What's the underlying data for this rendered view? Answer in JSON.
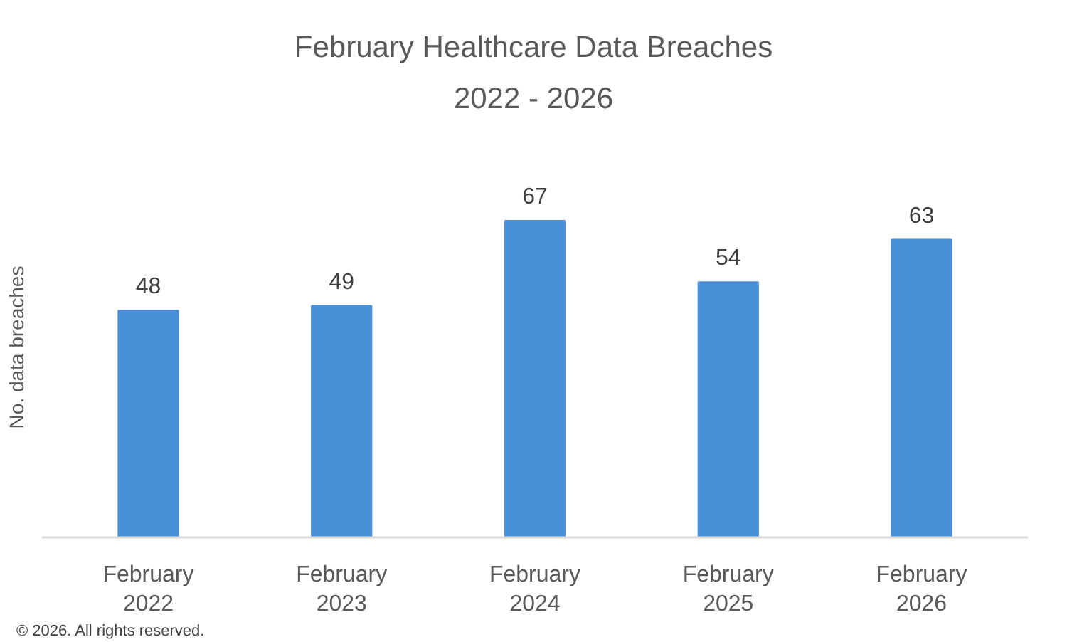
{
  "chart_data": {
    "type": "bar",
    "title": "February Healthcare Data Breaches\n2022 - 2026",
    "ylabel": "No. data breaches",
    "categories": [
      "February\n2022",
      "February\n2023",
      "February\n2024",
      "February\n2025",
      "February\n2026"
    ],
    "values": [
      48,
      49,
      67,
      54,
      63
    ],
    "color": "#4a90d9",
    "data_labels": true,
    "tick_labels": "x",
    "annotations": [
      "© 2026. All rights reserved."
    ]
  }
}
